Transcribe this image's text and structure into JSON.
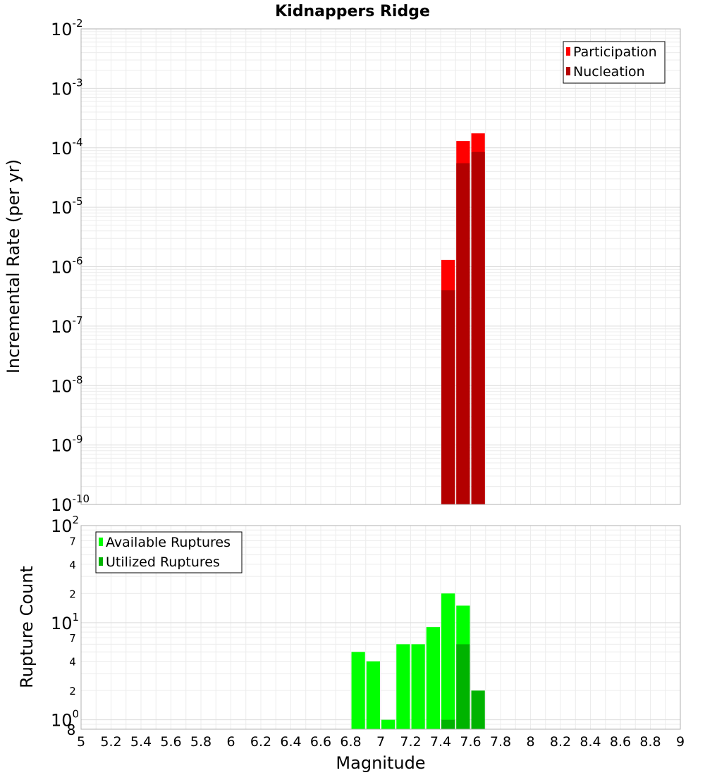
{
  "chart_data": [
    {
      "type": "bar",
      "title": "Kidnappers Ridge",
      "ylabel": "Incremental Rate (per yr)",
      "xlabel": "",
      "y_scale": "log",
      "ylim_exponents": [
        -10,
        -2
      ],
      "y_tick_base": "10",
      "y_tick_exponents": [
        "-10",
        "-9",
        "-8",
        "-7",
        "-6",
        "-5",
        "-4",
        "-3",
        "-2"
      ],
      "xlim": [
        5,
        9
      ],
      "grid": true,
      "legend_position": "top-right",
      "bar_width": 0.1,
      "series": [
        {
          "name": "Participation",
          "color": "#ff0000",
          "x": [
            7.45,
            7.55,
            7.65
          ],
          "values": [
            1.3e-06,
            0.00013,
            0.000175
          ]
        },
        {
          "name": "Nucleation",
          "color": "#b30000",
          "x": [
            7.45,
            7.55,
            7.65
          ],
          "values": [
            4e-07,
            5.5e-05,
            8.5e-05
          ]
        }
      ]
    },
    {
      "type": "bar",
      "title": "",
      "ylabel": "Rupture Count",
      "xlabel": "Magnitude",
      "y_scale": "log",
      "ylim": [
        0.8,
        100
      ],
      "y_tick_base": "10",
      "y_major_ticks": [
        {
          "value": 1,
          "exp": "0"
        },
        {
          "value": 10,
          "exp": "1"
        },
        {
          "value": 100,
          "exp": "2"
        }
      ],
      "y_minor_labels": [
        {
          "value": 0.8,
          "label": "8"
        },
        {
          "value": 2,
          "label": "2"
        },
        {
          "value": 4,
          "label": "4"
        },
        {
          "value": 7,
          "label": "7"
        },
        {
          "value": 20,
          "label": "2"
        },
        {
          "value": 40,
          "label": "4"
        },
        {
          "value": 70,
          "label": "7"
        }
      ],
      "xlim": [
        5,
        9
      ],
      "x_ticks": [
        "5",
        "5.2",
        "5.4",
        "5.6",
        "5.8",
        "6",
        "6.2",
        "6.4",
        "6.6",
        "6.8",
        "7",
        "7.2",
        "7.4",
        "7.6",
        "7.8",
        "8",
        "8.2",
        "8.4",
        "8.6",
        "8.8",
        "9"
      ],
      "grid": true,
      "legend_position": "top-left",
      "bar_width": 0.1,
      "series": [
        {
          "name": "Available Ruptures",
          "color": "#00ff00",
          "x": [
            6.85,
            6.95,
            7.05,
            7.15,
            7.25,
            7.35,
            7.45,
            7.55
          ],
          "values": [
            5,
            4,
            1,
            6,
            6,
            9,
            20,
            15
          ]
        },
        {
          "name": "Utilized Ruptures",
          "color": "#00b300",
          "x": [
            7.45,
            7.55,
            7.65
          ],
          "values": [
            1,
            6,
            2
          ]
        }
      ]
    }
  ]
}
